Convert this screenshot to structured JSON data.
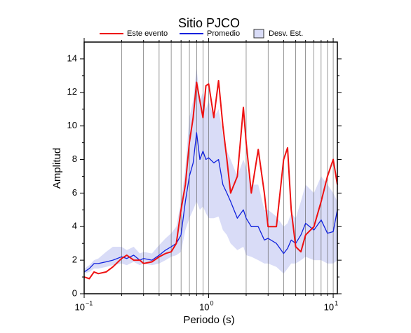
{
  "chart_data": {
    "type": "line",
    "title": "Sitio PJCO",
    "xlabel": "Periodo (s)",
    "ylabel": "Amplitud",
    "xscale": "log",
    "xlim": [
      0.1,
      10.8
    ],
    "ylim": [
      0,
      15
    ],
    "xticks": [
      {
        "value": 0.1,
        "label": "10",
        "exponent": "−1"
      },
      {
        "value": 1,
        "label": "10",
        "exponent": "0"
      },
      {
        "value": 10,
        "label": "10",
        "exponent": "1"
      }
    ],
    "xminorticks": [
      0.2,
      0.3,
      0.4,
      0.5,
      0.6,
      0.7,
      0.8,
      0.9,
      2,
      3,
      4,
      5,
      6,
      7,
      8,
      9
    ],
    "yticks": [
      0,
      2,
      4,
      6,
      8,
      10,
      12,
      14
    ],
    "yminorticks": [
      1,
      3,
      5,
      7,
      9,
      11,
      13
    ],
    "xgrid": true,
    "legend": "top",
    "x": [
      0.1,
      0.11,
      0.12,
      0.13,
      0.15,
      0.17,
      0.2,
      0.22,
      0.25,
      0.28,
      0.3,
      0.35,
      0.4,
      0.45,
      0.5,
      0.55,
      0.6,
      0.65,
      0.7,
      0.75,
      0.8,
      0.85,
      0.9,
      0.95,
      1.0,
      1.1,
      1.2,
      1.3,
      1.4,
      1.5,
      1.7,
      1.9,
      2.0,
      2.2,
      2.5,
      2.8,
      3.0,
      3.5,
      4.0,
      4.3,
      4.6,
      5.0,
      5.5,
      6.0,
      7.0,
      8.0,
      9.0,
      10.0,
      10.8
    ],
    "band": {
      "name": "Desv. Est.",
      "color": "#d9dcf7",
      "edge": "#333333",
      "lower": [
        1.2,
        1.3,
        1.5,
        1.5,
        1.6,
        1.7,
        1.8,
        1.7,
        1.9,
        1.7,
        1.8,
        1.7,
        1.8,
        2.0,
        2.2,
        2.3,
        2.5,
        3.8,
        4.5,
        5.0,
        5.5,
        5.0,
        5.2,
        4.8,
        4.5,
        4.5,
        4.6,
        3.8,
        3.5,
        3.0,
        2.6,
        2.8,
        2.3,
        2.2,
        2.0,
        1.8,
        1.8,
        1.6,
        1.2,
        1.5,
        1.8,
        1.8,
        2.0,
        2.2,
        2.0,
        2.0,
        1.8,
        1.8,
        2.0
      ],
      "upper": [
        1.5,
        1.7,
        2.0,
        2.1,
        2.5,
        2.8,
        2.8,
        2.6,
        2.8,
        2.4,
        2.5,
        2.4,
        2.9,
        3.3,
        3.6,
        4.0,
        5.5,
        7.5,
        10.5,
        11.5,
        13.5,
        11.5,
        12.0,
        11.0,
        11.5,
        10.5,
        11.0,
        9.5,
        8.5,
        8.0,
        7.0,
        8.0,
        7.5,
        6.5,
        6.5,
        5.0,
        5.0,
        4.6,
        4.0,
        4.2,
        4.8,
        4.5,
        5.5,
        6.5,
        6.0,
        7.0,
        6.5,
        6.0,
        5.5
      ]
    },
    "series": [
      {
        "name": "Este evento",
        "color": "#ee1111",
        "values": [
          1.0,
          0.9,
          1.3,
          1.2,
          1.3,
          1.6,
          2.1,
          2.3,
          2.0,
          2.0,
          1.8,
          1.9,
          2.2,
          2.4,
          2.5,
          3.0,
          5.0,
          6.5,
          9.0,
          10.5,
          12.6,
          11.5,
          10.5,
          12.4,
          12.5,
          10.5,
          12.7,
          10.0,
          8.0,
          6.0,
          7.0,
          11.1,
          9.0,
          6.0,
          8.6,
          6.0,
          4.0,
          4.0,
          8.0,
          8.7,
          5.0,
          2.8,
          2.5,
          3.5,
          4.0,
          5.5,
          7.0,
          8.0,
          6.5
        ]
      },
      {
        "name": "Promedio",
        "color": "#1122dd",
        "values": [
          1.3,
          1.5,
          1.8,
          1.8,
          1.9,
          2.0,
          2.2,
          2.1,
          2.3,
          2.0,
          2.1,
          2.0,
          2.3,
          2.6,
          2.8,
          3.0,
          3.5,
          5.5,
          7.0,
          7.8,
          9.6,
          8.0,
          8.5,
          8.0,
          8.1,
          7.8,
          8.0,
          6.5,
          6.0,
          5.5,
          4.5,
          5.0,
          4.5,
          4.0,
          4.0,
          3.2,
          3.3,
          3.0,
          2.4,
          2.7,
          3.2,
          3.0,
          3.5,
          4.2,
          3.8,
          4.4,
          3.6,
          3.7,
          5.0
        ]
      }
    ]
  }
}
